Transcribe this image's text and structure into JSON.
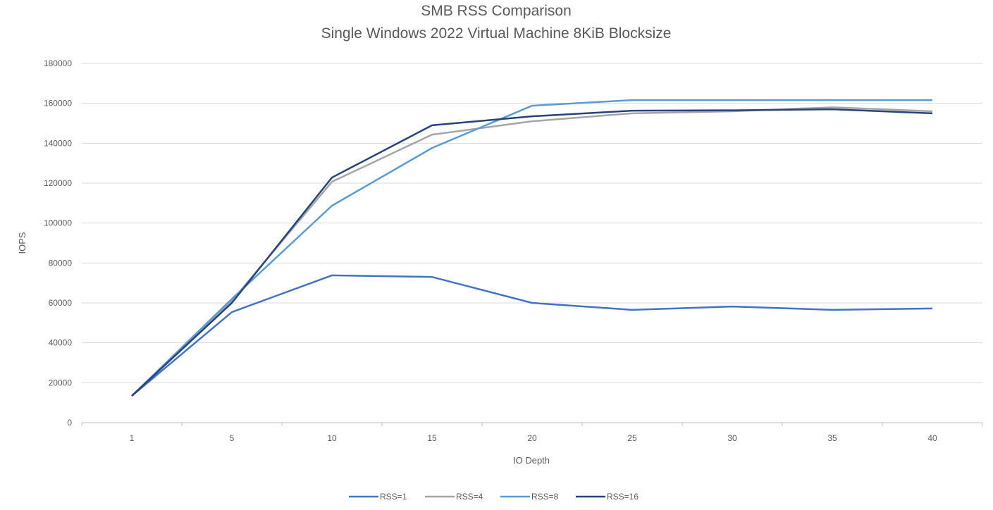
{
  "chart_data": {
    "type": "line",
    "title": "SMB RSS Comparison",
    "subtitle": "Single Windows 2022 Virtual Machine 8KiB Blocksize",
    "xlabel": "IO Depth",
    "ylabel": "IOPS",
    "categories": [
      "1",
      "5",
      "10",
      "15",
      "20",
      "25",
      "30",
      "35",
      "40"
    ],
    "ylim": [
      0,
      180000
    ],
    "yticks": [
      0,
      20000,
      40000,
      60000,
      80000,
      100000,
      120000,
      140000,
      160000,
      180000
    ],
    "grid": true,
    "legend_position": "bottom",
    "series": [
      {
        "name": "RSS=1",
        "color": "#4472C4",
        "values": [
          13400,
          55400,
          73800,
          73000,
          60000,
          56500,
          58200,
          56500,
          57200
        ]
      },
      {
        "name": "RSS=4",
        "color": "#A5A5A5",
        "values": [
          13400,
          61000,
          120700,
          144300,
          151000,
          155000,
          156000,
          158000,
          156000
        ]
      },
      {
        "name": "RSS=8",
        "color": "#5B9BD5",
        "values": [
          13400,
          62000,
          108700,
          137600,
          158800,
          161600,
          161600,
          161600,
          161600
        ]
      },
      {
        "name": "RSS=16",
        "color": "#264478",
        "values": [
          13400,
          60000,
          122800,
          149000,
          153500,
          156300,
          156500,
          157000,
          155000
        ]
      }
    ]
  }
}
